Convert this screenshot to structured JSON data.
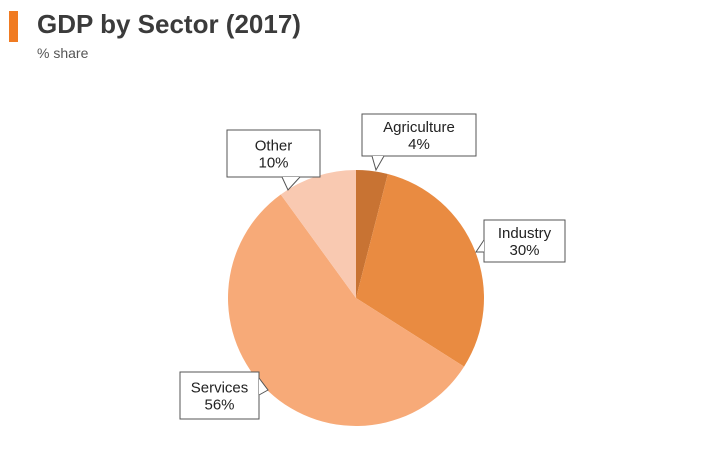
{
  "header": {
    "title": "GDP by Sector (2017)",
    "subtitle": "% share"
  },
  "chart_data": {
    "type": "pie",
    "title": "GDP by Sector (2017)",
    "subtitle": "% share",
    "slices": [
      {
        "label": "Agriculture",
        "value": 4,
        "value_label": "4%",
        "color": "#c87333"
      },
      {
        "label": "Industry",
        "value": 30,
        "value_label": "30%",
        "color": "#e98b41"
      },
      {
        "label": "Services",
        "value": 56,
        "value_label": "56%",
        "color": "#f7aa78"
      },
      {
        "label": "Other",
        "value": 10,
        "value_label": "10%",
        "color": "#f9c9b1"
      }
    ],
    "start_angle": "12 o'clock",
    "direction": "clockwise",
    "legend": "none"
  },
  "colors": {
    "accent": "#f07b22"
  }
}
